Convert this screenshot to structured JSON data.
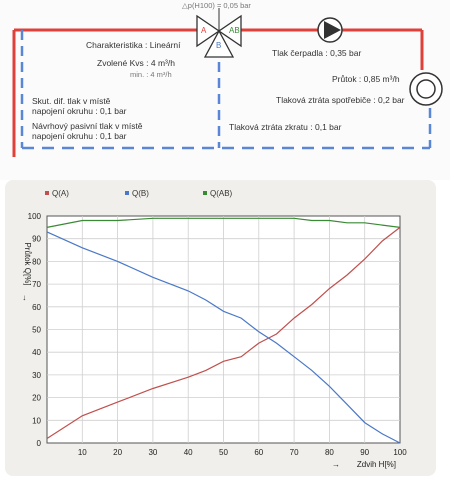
{
  "diagram": {
    "dp_label": "△p(H100) = 0,05 bar",
    "valve_ports": {
      "a": "A",
      "ab": "AB",
      "b": "B"
    },
    "characteristic": "Charakteristika : Lineární",
    "kvs_selected": "Zvolené Kvs : 4 m³/h",
    "kvs_min": "min. : 4 m³/h",
    "pump_head": "Tlak čerpadla : 0,35 bar",
    "flow": "Průtok : 0,85 m³/h",
    "consumer_loss": "Tlaková ztráta spotřebiče : 0,2 bar",
    "bypass_loss": "Tlaková ztráta zkratu : 0,1 bar",
    "diff_pressure_line1": "Skut. dif. tlak v místě",
    "diff_pressure_line2": "napojení okruhu : 0,1 bar",
    "design_pressure_line1": "Návrhový pasivní tlak v místě",
    "design_pressure_line2": "napojení okruhu : 0,1 bar",
    "colors": {
      "supply": "#e0403a",
      "return": "#5b86d6"
    },
    "icons": [
      "three-way-valve-icon",
      "pump-icon",
      "consumer-icon"
    ]
  },
  "chart_data": {
    "type": "line",
    "title": "",
    "xlabel": "Zdvih H[%]",
    "ylabel": "Průtok Q[%]",
    "xlim": [
      0,
      100
    ],
    "ylim": [
      0,
      100
    ],
    "x_ticks": [
      10,
      20,
      30,
      40,
      50,
      60,
      70,
      80,
      90,
      100
    ],
    "y_ticks": [
      0,
      10,
      20,
      30,
      40,
      50,
      60,
      70,
      80,
      90,
      100
    ],
    "grid": true,
    "legend_position": "top",
    "x": [
      0,
      10,
      20,
      30,
      40,
      45,
      50,
      55,
      60,
      65,
      70,
      75,
      80,
      85,
      90,
      95,
      100
    ],
    "series": [
      {
        "name": "Q(A)",
        "color": "#c0504d",
        "values": [
          2,
          12,
          18,
          24,
          29,
          32,
          36,
          38,
          44,
          48,
          55,
          61,
          68,
          74,
          81,
          89,
          95
        ]
      },
      {
        "name": "Q(B)",
        "color": "#4a78c8",
        "values": [
          93,
          86,
          80,
          73,
          67,
          63,
          58,
          55,
          49,
          44,
          38,
          32,
          25,
          17,
          9,
          4,
          0
        ]
      },
      {
        "name": "Q(AB)",
        "color": "#3a8a35",
        "values": [
          95,
          98,
          98,
          99,
          99,
          99,
          99,
          99,
          99,
          99,
          99,
          98,
          98,
          97,
          97,
          96,
          95
        ]
      }
    ]
  }
}
